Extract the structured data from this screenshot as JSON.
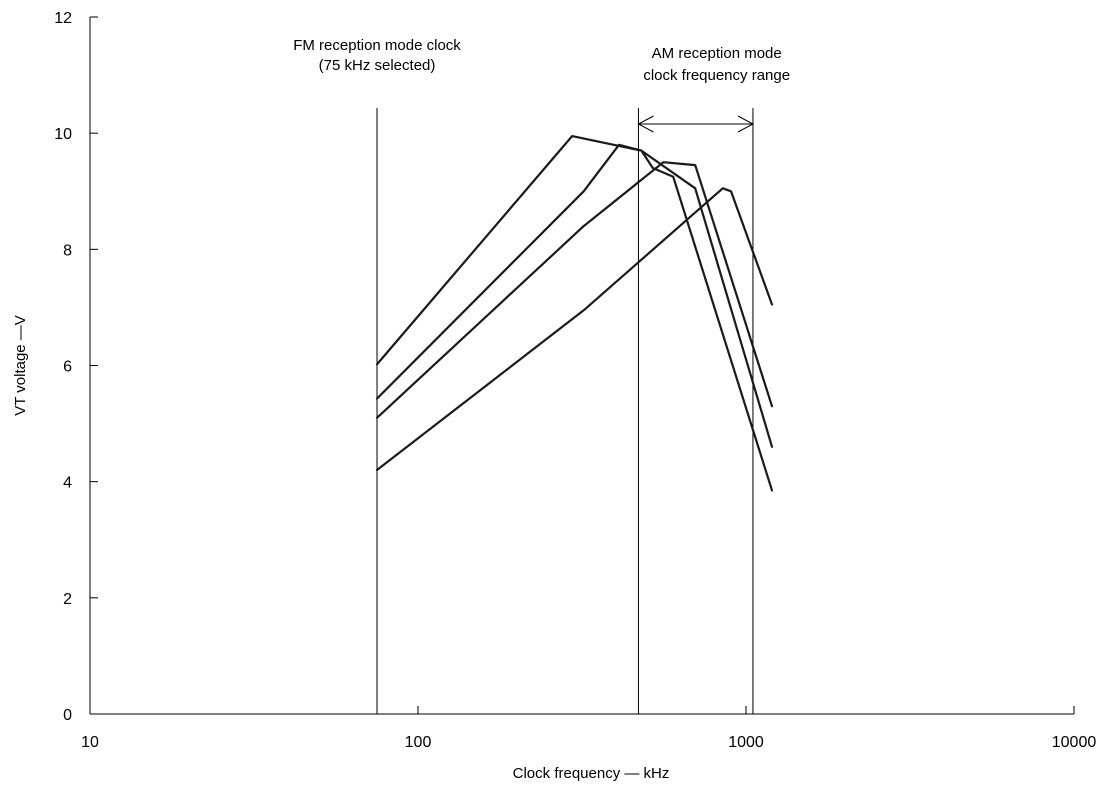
{
  "chart_data": {
    "type": "line",
    "title": "",
    "xlabel": "Clock frequency — kHz",
    "ylabel": "VT voltage —V",
    "x_scale": "log",
    "xlim": [
      10,
      10000
    ],
    "ylim": [
      0,
      12
    ],
    "x_ticks": [
      "10",
      "100",
      "1000",
      "10000"
    ],
    "y_ticks": [
      "0",
      "2",
      "4",
      "6",
      "8",
      "10",
      "12"
    ],
    "grid": false,
    "legend": "none",
    "line_color": "#1a1a1a",
    "series": [
      {
        "x": [
          75,
          295,
          480,
          520,
          600,
          1200
        ],
        "y": [
          6.02,
          9.95,
          9.7,
          9.4,
          9.25,
          3.85
        ]
      },
      {
        "x": [
          75,
          320,
          410,
          480,
          700,
          1200
        ],
        "y": [
          5.43,
          9.0,
          9.8,
          9.7,
          9.05,
          4.6
        ]
      },
      {
        "x": [
          75,
          320,
          560,
          700,
          1200
        ],
        "y": [
          5.1,
          8.4,
          9.5,
          9.45,
          5.3
        ]
      },
      {
        "x": [
          75,
          320,
          850,
          900,
          1200
        ],
        "y": [
          4.2,
          6.95,
          9.05,
          9.0,
          7.05
        ]
      }
    ],
    "vertical_lines": [
      75,
      470,
      1050
    ],
    "annotations": {
      "fm_line1": "FM reception mode clock",
      "fm_line2": "(75 kHz selected)",
      "am_line1": "AM reception mode",
      "am_line2": "clock frequency range",
      "am_range": [
        470,
        1050
      ]
    }
  }
}
